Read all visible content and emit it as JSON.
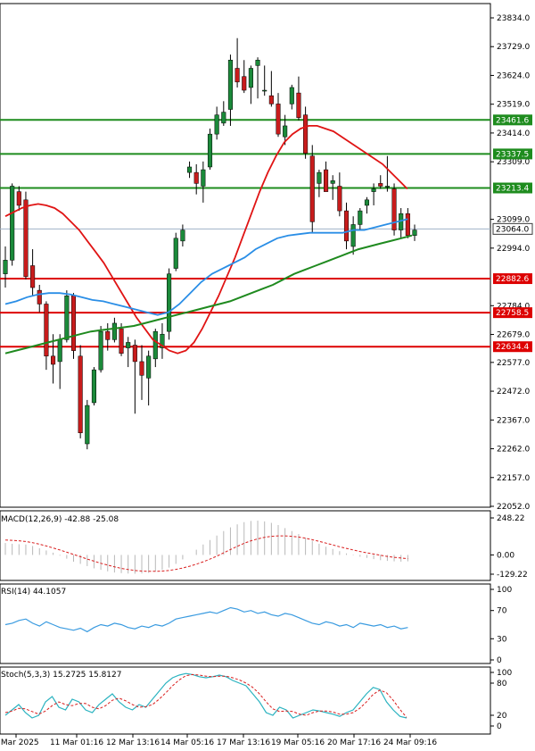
{
  "chart_data": [
    {
      "type": "candlestick",
      "price_axis": {
        "ticks": [
          "23834.0",
          "23729.0",
          "23624.0",
          "23519.0",
          "23414.0",
          "23309.0",
          "23099.0",
          "22994.0",
          "22784.0",
          "22679.0",
          "22577.0",
          "22472.0",
          "22367.0",
          "22262.0",
          "22157.0",
          "22052.0"
        ],
        "range": [
          22052,
          23870
        ]
      },
      "time_axis": {
        "labels": [
          "7 Mar 2025",
          "11 Mar 01:16",
          "12 Mar 13:16",
          "14 Mar 05:16",
          "17 Mar 13:16",
          "19 Mar 05:16",
          "20 Mar 17:16",
          "24 Mar 09:16"
        ]
      },
      "current_price": {
        "label": "23064.0",
        "value": 23064.0,
        "color": "#3b3b3b"
      },
      "horizontal_levels": [
        {
          "label": "23461.6",
          "value": 23461.6,
          "color": "#1e8c1e"
        },
        {
          "label": "23337.5",
          "value": 23337.5,
          "color": "#1e8c1e"
        },
        {
          "label": "23213.4",
          "value": 23213.4,
          "color": "#1e8c1e"
        },
        {
          "label": "22882.6",
          "value": 22882.6,
          "color": "#dd0000"
        },
        {
          "label": "22758.5",
          "value": 22758.5,
          "color": "#dd0000"
        },
        {
          "label": "22634.4",
          "value": 22634.4,
          "color": "#dd0000"
        }
      ],
      "candles": [
        [
          22900,
          23000,
          22850,
          22950
        ],
        [
          22950,
          23230,
          22930,
          23220
        ],
        [
          23200,
          23220,
          23130,
          23150
        ],
        [
          23170,
          23200,
          22880,
          22890
        ],
        [
          22930,
          22990,
          22820,
          22850
        ],
        [
          22840,
          22860,
          22760,
          22790
        ],
        [
          22790,
          22800,
          22550,
          22600
        ],
        [
          22600,
          22680,
          22500,
          22570
        ],
        [
          22580,
          22680,
          22480,
          22660
        ],
        [
          22660,
          22840,
          22650,
          22820
        ],
        [
          22820,
          22830,
          22590,
          22620
        ],
        [
          22600,
          22640,
          22300,
          22320
        ],
        [
          22280,
          22440,
          22260,
          22420
        ],
        [
          22430,
          22560,
          22420,
          22550
        ],
        [
          22550,
          22710,
          22540,
          22690
        ],
        [
          22690,
          22720,
          22620,
          22660
        ],
        [
          22660,
          22740,
          22650,
          22720
        ],
        [
          22700,
          22720,
          22600,
          22610
        ],
        [
          22630,
          22670,
          22560,
          22650
        ],
        [
          22640,
          22660,
          22390,
          22580
        ],
        [
          22580,
          22640,
          22440,
          22530
        ],
        [
          22520,
          22620,
          22420,
          22600
        ],
        [
          22590,
          22700,
          22560,
          22690
        ],
        [
          22630,
          22720,
          22590,
          22680
        ],
        [
          22690,
          22920,
          22660,
          22900
        ],
        [
          22920,
          23050,
          22910,
          23030
        ],
        [
          23020,
          23080,
          23000,
          23060
        ],
        [
          23270,
          23310,
          23250,
          23290
        ],
        [
          23270,
          23300,
          23190,
          23230
        ],
        [
          23220,
          23310,
          23160,
          23280
        ],
        [
          23290,
          23430,
          23280,
          23410
        ],
        [
          23410,
          23510,
          23390,
          23480
        ],
        [
          23450,
          23530,
          23440,
          23490
        ],
        [
          23500,
          23700,
          23440,
          23680
        ],
        [
          23650,
          23760,
          23580,
          23600
        ],
        [
          23620,
          23680,
          23560,
          23570
        ],
        [
          23580,
          23660,
          23520,
          23650
        ],
        [
          23660,
          23690,
          23540,
          23680
        ],
        [
          23570,
          23660,
          23550,
          23570
        ],
        [
          23550,
          23640,
          23510,
          23520
        ],
        [
          23520,
          23560,
          23400,
          23410
        ],
        [
          23400,
          23480,
          23370,
          23440
        ],
        [
          23520,
          23590,
          23500,
          23580
        ],
        [
          23560,
          23620,
          23460,
          23470
        ],
        [
          23480,
          23510,
          23320,
          23340
        ],
        [
          23330,
          23370,
          23050,
          23090
        ],
        [
          23230,
          23280,
          23180,
          23270
        ],
        [
          23280,
          23310,
          23200,
          23200
        ],
        [
          23230,
          23260,
          23170,
          23240
        ],
        [
          23220,
          23270,
          23110,
          23130
        ],
        [
          23130,
          23160,
          22990,
          23020
        ],
        [
          23000,
          23110,
          22970,
          23080
        ],
        [
          23080,
          23140,
          23060,
          23130
        ],
        [
          23150,
          23180,
          23120,
          23170
        ],
        [
          23200,
          23230,
          23150,
          23210
        ],
        [
          23230,
          23260,
          23210,
          23220
        ],
        [
          23220,
          23330,
          23200,
          23220
        ],
        [
          23210,
          23230,
          23040,
          23060
        ],
        [
          23060,
          23140,
          23030,
          23120
        ],
        [
          23120,
          23140,
          23030,
          23040
        ],
        [
          23040,
          23080,
          23020,
          23060
        ]
      ],
      "ma_red": [
        23110,
        23125,
        23140,
        23150,
        23155,
        23150,
        23140,
        23120,
        23090,
        23060,
        23020,
        22980,
        22940,
        22890,
        22840,
        22790,
        22740,
        22700,
        22660,
        22640,
        22620,
        22610,
        22620,
        22650,
        22700,
        22760,
        22820,
        22890,
        22960,
        23040,
        23120,
        23200,
        23270,
        23330,
        23380,
        23410,
        23430,
        23440,
        23440,
        23430,
        23420,
        23400,
        23380,
        23360,
        23340,
        23320,
        23300,
        23270,
        23240,
        23210
      ],
      "ma_blue": [
        22790,
        22800,
        22815,
        22825,
        22830,
        22830,
        22825,
        22815,
        22805,
        22800,
        22790,
        22780,
        22770,
        22760,
        22750,
        22760,
        22790,
        22830,
        22870,
        22900,
        22920,
        22940,
        22960,
        22990,
        23010,
        23030,
        23040,
        23045,
        23050,
        23050,
        23050,
        23050,
        23060,
        23060,
        23070,
        23080,
        23090,
        23100
      ],
      "ma_green": [
        22610,
        22620,
        22630,
        22640,
        22650,
        22660,
        22670,
        22680,
        22690,
        22695,
        22700,
        22705,
        22710,
        22720,
        22730,
        22740,
        22750,
        22760,
        22770,
        22780,
        22790,
        22800,
        22815,
        22830,
        22845,
        22860,
        22880,
        22900,
        22915,
        22930,
        22945,
        22960,
        22975,
        22990,
        23000,
        23010,
        23020,
        23030,
        23040
      ],
      "series_legend": []
    },
    {
      "type": "bar",
      "title": "MACD(12,26,9) -42.88 -25.08",
      "axis_ticks": [
        "248.22",
        "0.00",
        "-129.22"
      ],
      "range": [
        -129.22,
        248.22
      ],
      "histogram": [
        80,
        75,
        72,
        70,
        60,
        45,
        30,
        15,
        -5,
        -25,
        -45,
        -60,
        -75,
        -90,
        -100,
        -110,
        -118,
        -122,
        -125,
        -126,
        -124,
        -120,
        -112,
        -100,
        -85,
        -60,
        -30,
        0,
        35,
        70,
        100,
        130,
        160,
        185,
        205,
        220,
        228,
        230,
        225,
        215,
        200,
        180,
        160,
        140,
        115,
        95,
        75,
        55,
        40,
        25,
        10,
        -3,
        -12,
        -20,
        -28,
        -35,
        -40,
        -43,
        -45,
        -43
      ],
      "signal": [
        100,
        98,
        95,
        90,
        82,
        72,
        60,
        47,
        33,
        18,
        3,
        -12,
        -28,
        -42,
        -56,
        -68,
        -80,
        -90,
        -98,
        -104,
        -108,
        -110,
        -110,
        -108,
        -104,
        -97,
        -88,
        -76,
        -62,
        -46,
        -28,
        -8,
        14,
        36,
        58,
        78,
        95,
        108,
        118,
        125,
        128,
        128,
        125,
        120,
        112,
        102,
        91,
        79,
        67,
        55,
        44,
        33,
        23,
        14,
        6,
        -2,
        -10,
        -16,
        -21,
        -25
      ]
    },
    {
      "type": "line",
      "title": "RSI(14) 44.1057",
      "axis_ticks": [
        "100",
        "70",
        "30",
        "0"
      ],
      "range": [
        0,
        100
      ],
      "values": [
        50,
        52,
        56,
        58,
        52,
        48,
        54,
        50,
        46,
        44,
        42,
        45,
        40,
        46,
        50,
        48,
        52,
        50,
        46,
        44,
        48,
        46,
        50,
        48,
        52,
        58,
        60,
        62,
        64,
        66,
        68,
        66,
        70,
        74,
        72,
        68,
        70,
        66,
        68,
        64,
        62,
        66,
        64,
        60,
        56,
        52,
        50,
        54,
        52,
        48,
        50,
        46,
        52,
        50,
        48,
        50,
        46,
        48,
        44,
        46
      ]
    },
    {
      "type": "line",
      "title": "Stoch(5,3,3) 15.2725 15.8127",
      "axis_ticks": [
        "100",
        "80",
        "20",
        "0"
      ],
      "range": [
        0,
        100
      ],
      "main": [
        20,
        30,
        40,
        25,
        15,
        20,
        45,
        55,
        35,
        30,
        50,
        45,
        30,
        25,
        40,
        50,
        60,
        45,
        35,
        30,
        40,
        35,
        50,
        65,
        80,
        90,
        95,
        98,
        96,
        92,
        90,
        92,
        95,
        92,
        85,
        80,
        75,
        60,
        45,
        25,
        20,
        35,
        30,
        15,
        20,
        25,
        30,
        28,
        25,
        22,
        18,
        25,
        30,
        45,
        60,
        72,
        68,
        45,
        30,
        18,
        15
      ],
      "signal": [
        25,
        28,
        33,
        32,
        27,
        22,
        28,
        38,
        45,
        40,
        38,
        42,
        42,
        35,
        32,
        38,
        48,
        52,
        47,
        40,
        35,
        36,
        40,
        50,
        62,
        75,
        86,
        94,
        96,
        95,
        93,
        92,
        93,
        93,
        90,
        86,
        80,
        72,
        60,
        45,
        32,
        27,
        28,
        27,
        22,
        20,
        25,
        28,
        28,
        26,
        22,
        22,
        25,
        33,
        45,
        59,
        67,
        62,
        48,
        31,
        16
      ]
    }
  ]
}
